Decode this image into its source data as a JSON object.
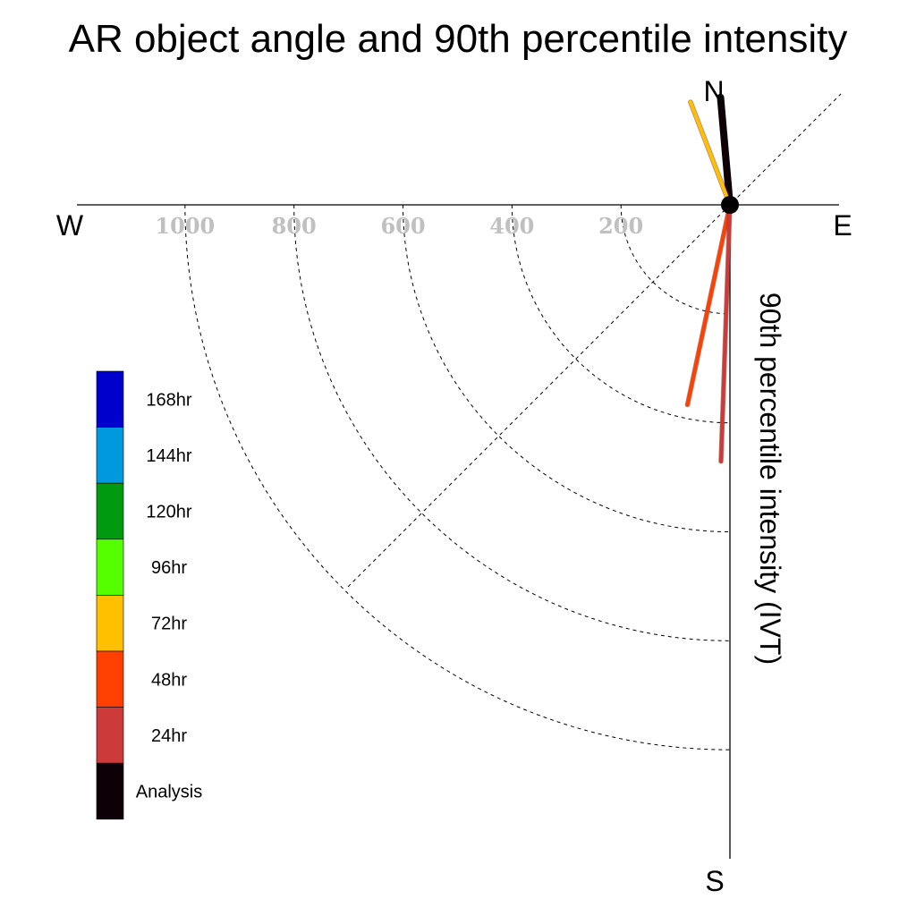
{
  "chart_data": {
    "type": "polar-vector",
    "title": "AR object angle and 90th percentile intensity",
    "radial_label": "90th percentile intensity (IVT)",
    "compass": {
      "north": "N",
      "south": "S",
      "east": "E",
      "west": "W"
    },
    "radial_ticks": [
      200,
      400,
      600,
      800,
      1000
    ],
    "radial_tick_labels": [
      "200",
      "400",
      "600",
      "800",
      "1000"
    ],
    "rmax": 1200,
    "grid": true,
    "series": [
      {
        "name": "Analysis",
        "color": "#0d0007",
        "angle_deg": 355,
        "intensity": 198,
        "width": 8
      },
      {
        "name": "72hr",
        "color": "#ffc000",
        "angle_deg": 339,
        "intensity": 202,
        "width": 4
      },
      {
        "name": "48hr",
        "color": "#ff4000",
        "angle_deg": 192,
        "intensity": 375,
        "width": 4
      },
      {
        "name": "24hr",
        "color": "#cc3a3a",
        "angle_deg": 182,
        "intensity": 471,
        "width": 4
      }
    ],
    "legend": {
      "placement": "left",
      "entries": [
        {
          "label": "168hr",
          "color": "#0000cc"
        },
        {
          "label": "144hr",
          "color": "#0099dd"
        },
        {
          "label": "120hr",
          "color": "#009a10"
        },
        {
          "label": "96hr",
          "color": "#55ff00"
        },
        {
          "label": "72hr",
          "color": "#ffc000"
        },
        {
          "label": "48hr",
          "color": "#ff4000"
        },
        {
          "label": "24hr",
          "color": "#cc3a3a"
        },
        {
          "label": "Analysis",
          "color": "#0d0007"
        }
      ]
    }
  }
}
